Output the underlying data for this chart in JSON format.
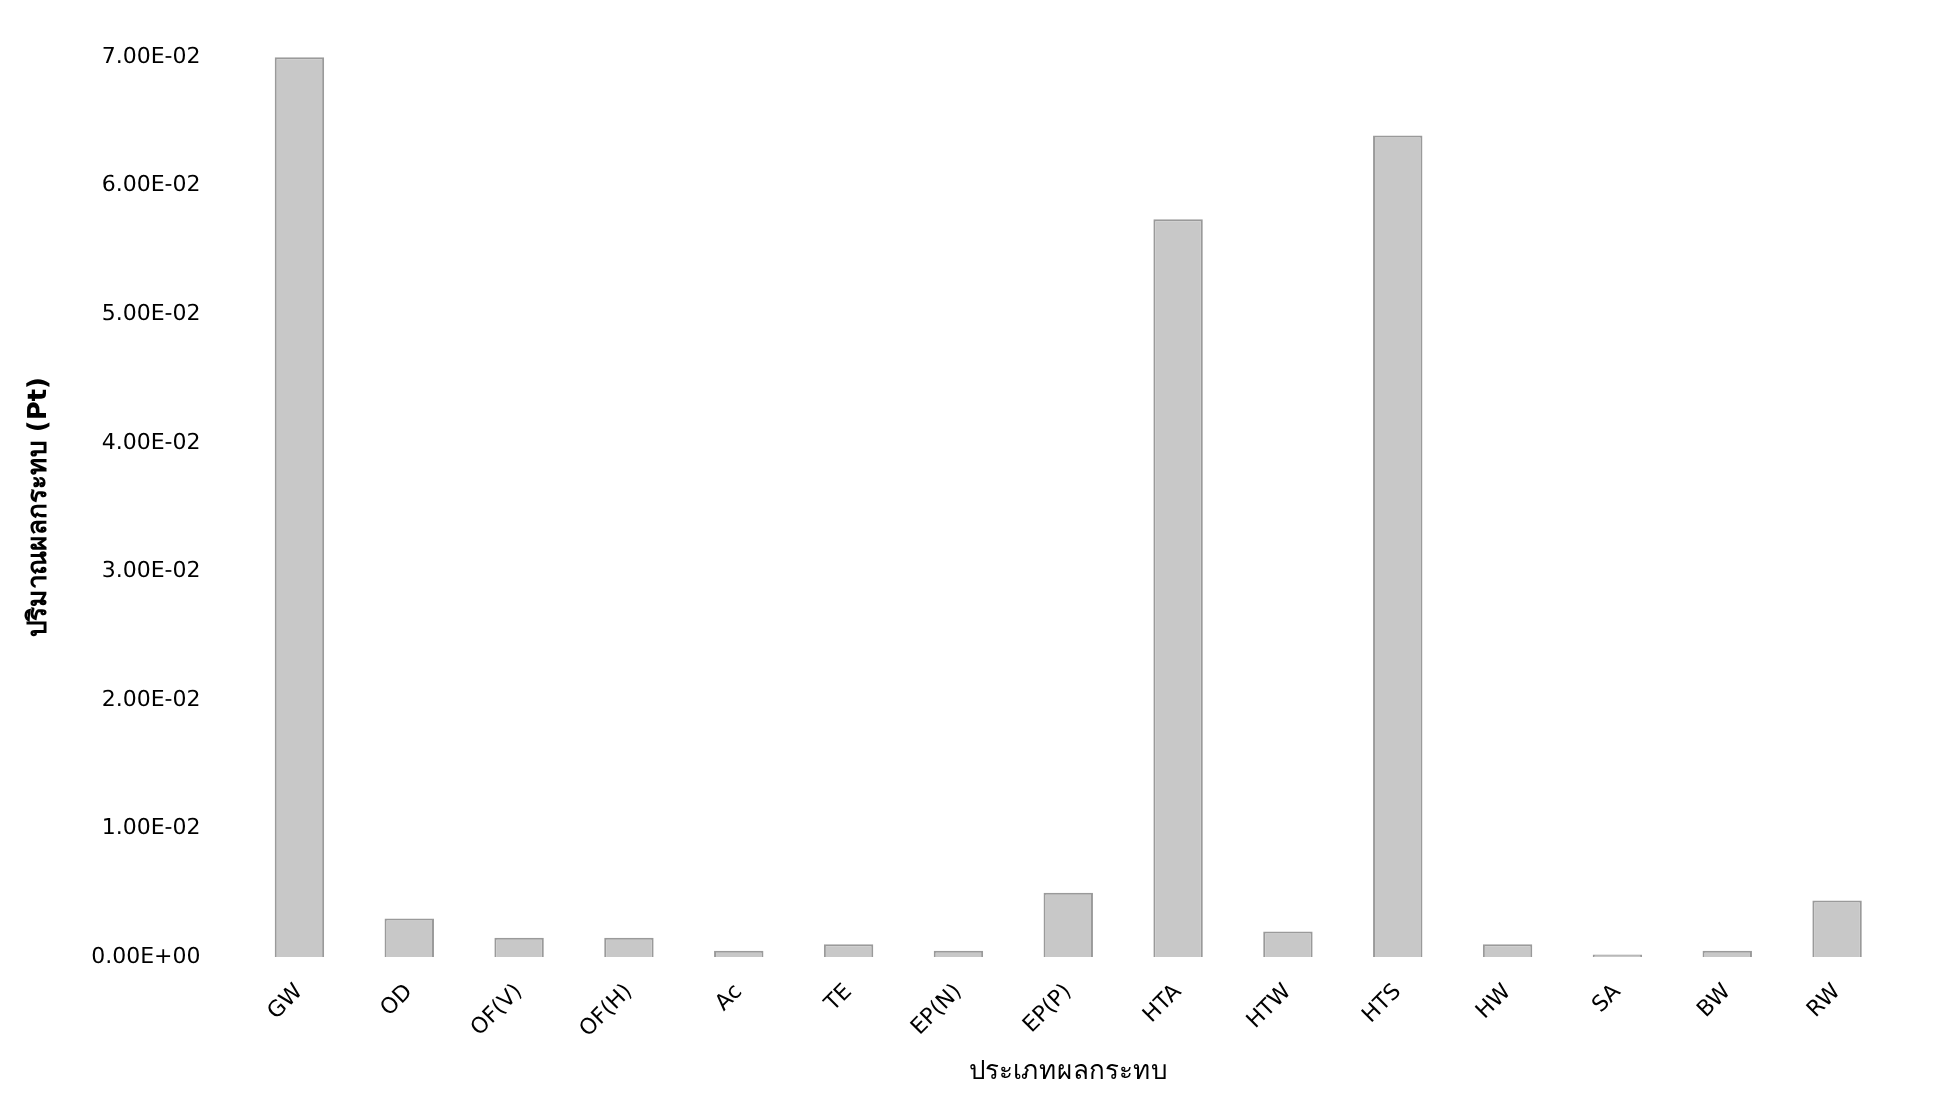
{
  "chart_data": {
    "type": "bar",
    "xlabel": "ประเภทผลกระทบ",
    "ylabel": "ปริมาณผลกระทบ (Pt)",
    "categories": [
      "GW",
      "OD",
      "OF(V)",
      "OF(H)",
      "Ac",
      "TE",
      "EP(N)",
      "EP(P)",
      "HTA",
      "HTW",
      "HTS",
      "HW",
      "SA",
      "BW",
      "RW"
    ],
    "values": [
      0.07,
      0.003,
      0.0015,
      0.0015,
      0.0005,
      0.001,
      0.0005,
      0.005,
      0.0574,
      0.002,
      0.0639,
      0.001,
      0.0002,
      0.0005,
      0.0044
    ],
    "color": "#c8c8c8",
    "ylim": [
      0,
      0.07
    ],
    "yticks": [
      {
        "value": 0,
        "label": "0.00E+00"
      },
      {
        "value": 0.01,
        "label": "1.00E-02"
      },
      {
        "value": 0.02,
        "label": "2.00E-02"
      },
      {
        "value": 0.03,
        "label": "3.00E-02"
      },
      {
        "value": 0.04,
        "label": "4.00E-02"
      },
      {
        "value": 0.05,
        "label": "5.00E-02"
      },
      {
        "value": 0.06,
        "label": "6.00E-02"
      },
      {
        "value": 0.07,
        "label": "7.00E-02"
      }
    ],
    "grid": false,
    "legend": false
  }
}
